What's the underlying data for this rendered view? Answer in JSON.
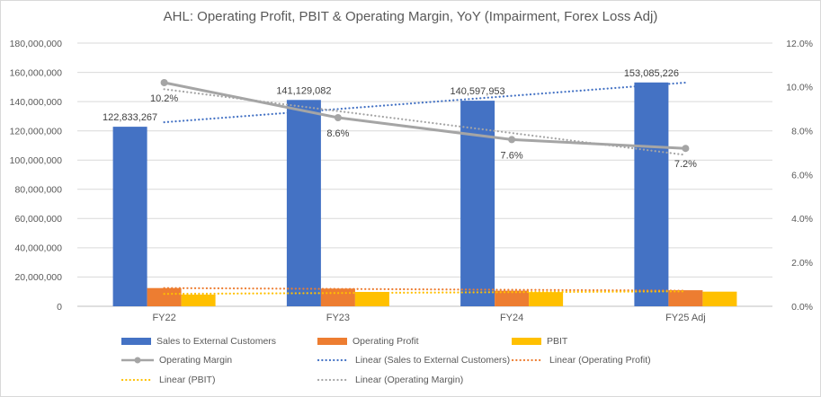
{
  "chart_data": {
    "type": "combo-bar-line",
    "title": "AHL: Operating Profit, PBIT & Operating Margin, YoY (Impairment, Forex Loss Adj)",
    "categories": [
      "FY22",
      "FY23",
      "FY24",
      "FY25 Adj"
    ],
    "left_axis": {
      "min": 0,
      "max": 180000000,
      "step": 20000000,
      "tick_labels": [
        "0",
        "20,000,000",
        "40,000,000",
        "60,000,000",
        "80,000,000",
        "100,000,000",
        "120,000,000",
        "140,000,000",
        "160,000,000",
        "180,000,000"
      ]
    },
    "right_axis": {
      "min": 0,
      "max": 0.12,
      "step": 0.02,
      "tick_labels": [
        "0.0%",
        "2.0%",
        "4.0%",
        "6.0%",
        "8.0%",
        "10.0%",
        "12.0%"
      ]
    },
    "series": [
      {
        "name": "Sales to External Customers",
        "type": "bar",
        "axis": "left",
        "color": "#4472C4",
        "values": [
          122833267,
          141129082,
          140597953,
          153085226
        ],
        "data_labels": [
          "122,833,267",
          "141,129,082",
          "140,597,953",
          "153,085,226"
        ]
      },
      {
        "name": "Operating Profit",
        "type": "bar",
        "axis": "left",
        "color": "#ED7D31",
        "values": [
          12500000,
          12100000,
          10700000,
          11000000
        ]
      },
      {
        "name": "PBIT",
        "type": "bar",
        "axis": "left",
        "color": "#FFC000",
        "values": [
          8000000,
          9800000,
          9700000,
          10000000
        ]
      },
      {
        "name": "Operating Margin",
        "type": "line",
        "axis": "right",
        "color": "#A5A5A5",
        "values": [
          0.102,
          0.086,
          0.076,
          0.072
        ],
        "data_labels": [
          "10.2%",
          "8.6%",
          "7.6%",
          "7.2%"
        ]
      }
    ],
    "trendlines": [
      {
        "label": "Linear (Sales to External Customers)",
        "series": 0,
        "color": "#4472C4"
      },
      {
        "label": "Linear (Operating Profit)",
        "series": 1,
        "color": "#ED7D31"
      },
      {
        "label": "Linear (PBIT)",
        "series": 2,
        "color": "#FFC000"
      },
      {
        "label": "Linear (Operating Margin)",
        "series": 3,
        "color": "#A5A5A5"
      }
    ],
    "legend": {
      "items": [
        {
          "label": "Sales to External Customers",
          "swatch": "bar",
          "color": "#4472C4",
          "row": 0,
          "col": 0
        },
        {
          "label": "Operating Profit",
          "swatch": "bar",
          "color": "#ED7D31",
          "row": 0,
          "col": 1
        },
        {
          "label": "PBIT",
          "swatch": "bar",
          "color": "#FFC000",
          "row": 0,
          "col": 2
        },
        {
          "label": "Operating Margin",
          "swatch": "line-marker",
          "color": "#A5A5A5",
          "row": 1,
          "col": 0
        },
        {
          "label": "Linear (Sales to External Customers)",
          "swatch": "dotted",
          "color": "#4472C4",
          "row": 1,
          "col": 1
        },
        {
          "label": "Linear (Operating Profit)",
          "swatch": "dotted",
          "color": "#ED7D31",
          "row": 1,
          "col": 2
        },
        {
          "label": "Linear (PBIT)",
          "swatch": "dotted",
          "color": "#FFC000",
          "row": 2,
          "col": 0
        },
        {
          "label": "Linear (Operating Margin)",
          "swatch": "dotted",
          "color": "#A5A5A5",
          "row": 2,
          "col": 1
        }
      ]
    },
    "colors": {
      "grid": "#D9D9D9",
      "axis_line": "#BFBFBF",
      "tick_text": "#595959",
      "title_text": "#595959",
      "data_label_text": "#404040",
      "background": "#FFFFFF",
      "border": "#D9D9D9"
    }
  }
}
